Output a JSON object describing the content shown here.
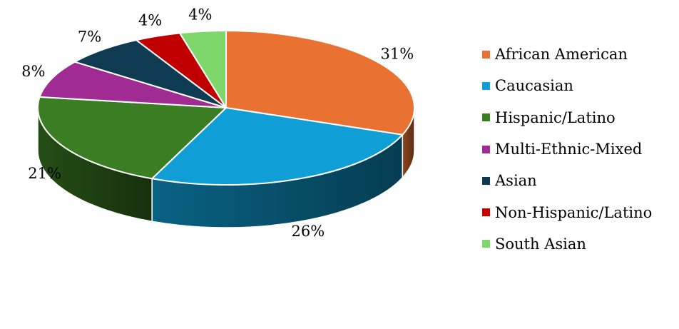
{
  "chart_data": {
    "type": "pie",
    "style": "3d-tilted",
    "categories": [
      "African American",
      "Caucasian",
      "Hispanic/Latino",
      "Multi-Ethnic-Mixed",
      "Asian",
      "Non-Hispanic/Latino",
      "South Asian"
    ],
    "values": [
      31,
      26,
      21,
      8,
      7,
      4,
      4
    ],
    "data_labels": [
      "31%",
      "26%",
      "21%",
      "8%",
      "7%",
      "4%",
      "4%"
    ],
    "unit": "%",
    "colors": [
      "#E97132",
      "#0F9ED5",
      "#3B7D23",
      "#A02B93",
      "#0E3A52",
      "#C00000",
      "#7FD66A"
    ],
    "title": "",
    "legend": {
      "position": "right",
      "entries": [
        "African American",
        "Caucasian",
        "Hispanic/Latino",
        "Multi-Ethnic-Mixed",
        "Asian",
        "Non-Hispanic/Latino",
        "South Asian"
      ]
    },
    "grid": false
  }
}
